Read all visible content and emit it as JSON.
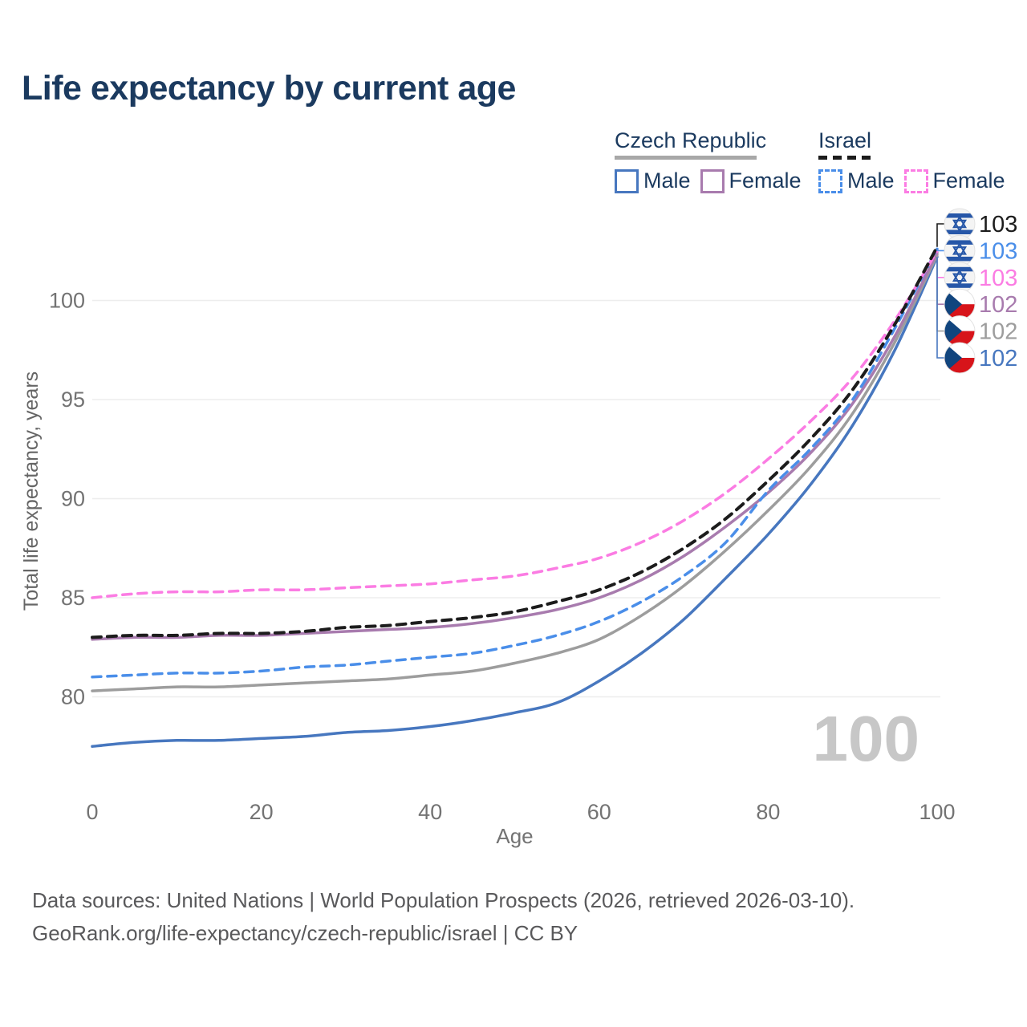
{
  "title": "Life expectancy by current age",
  "legend": {
    "groups": [
      {
        "label": "Czech Republic",
        "line_series_key": "czech_total",
        "items": [
          {
            "label": "Male",
            "series_key": "czech_male"
          },
          {
            "label": "Female",
            "series_key": "czech_female"
          }
        ]
      },
      {
        "label": "Israel",
        "line_series_key": "israel_total",
        "items": [
          {
            "label": "Male",
            "series_key": "israel_male"
          },
          {
            "label": "Female",
            "series_key": "israel_female"
          }
        ]
      }
    ]
  },
  "chart_data": {
    "type": "line",
    "title": "Life expectancy by current age",
    "xlabel": "Age",
    "ylabel": "Total life expectancy, years",
    "xlim": [
      0,
      100
    ],
    "ylim": [
      76,
      104
    ],
    "x_ticks": [
      0,
      20,
      40,
      60,
      80,
      100
    ],
    "y_ticks": [
      80,
      85,
      90,
      95,
      100
    ],
    "grid": "horizontal",
    "legend_position": "top-right",
    "watermark": "100",
    "x": [
      0,
      5,
      10,
      15,
      20,
      25,
      30,
      35,
      40,
      45,
      50,
      55,
      60,
      65,
      70,
      75,
      80,
      85,
      90,
      95,
      100
    ],
    "series": [
      {
        "key": "israel_total",
        "name": "Israel — both sexes",
        "country": "Israel",
        "sex": "both",
        "flag": "israel",
        "color": "#1c1c1c",
        "dashed": true,
        "end_label": "103",
        "values": [
          83.0,
          83.1,
          83.1,
          83.2,
          83.2,
          83.3,
          83.5,
          83.6,
          83.8,
          84.0,
          84.3,
          84.8,
          85.4,
          86.3,
          87.5,
          89.0,
          90.9,
          93.0,
          95.5,
          98.8,
          102.7
        ]
      },
      {
        "key": "israel_male",
        "name": "Israel — male",
        "country": "Israel",
        "sex": "male",
        "flag": "israel",
        "color": "#4a8ee9",
        "dashed": true,
        "end_label": "103",
        "values": [
          81.0,
          81.1,
          81.2,
          81.2,
          81.3,
          81.5,
          81.6,
          81.8,
          82.0,
          82.2,
          82.6,
          83.1,
          83.8,
          84.8,
          86.1,
          87.8,
          90.4,
          92.5,
          95.0,
          98.6,
          102.6
        ]
      },
      {
        "key": "israel_female",
        "name": "Israel — female",
        "country": "Israel",
        "sex": "female",
        "flag": "israel",
        "color": "#fb7ce3",
        "dashed": true,
        "end_label": "103",
        "values": [
          85.0,
          85.2,
          85.3,
          85.3,
          85.4,
          85.4,
          85.5,
          85.6,
          85.7,
          85.9,
          86.1,
          86.5,
          87.0,
          87.8,
          88.9,
          90.3,
          92.0,
          93.9,
          96.1,
          99.0,
          102.5
        ]
      },
      {
        "key": "czech_female",
        "name": "Czech Republic — female",
        "country": "Czech Republic",
        "sex": "female",
        "flag": "czech",
        "color": "#a87bae",
        "dashed": false,
        "end_label": "102",
        "values": [
          82.9,
          83.0,
          83.0,
          83.1,
          83.1,
          83.2,
          83.3,
          83.4,
          83.5,
          83.7,
          84.0,
          84.4,
          85.0,
          85.9,
          87.1,
          88.6,
          90.3,
          92.3,
          94.8,
          98.2,
          102.4
        ]
      },
      {
        "key": "czech_total",
        "name": "Czech Republic — both sexes",
        "country": "Czech Republic",
        "sex": "both",
        "flag": "czech",
        "color": "#9d9d9d",
        "dashed": false,
        "end_label": "102",
        "values": [
          80.3,
          80.4,
          80.5,
          80.5,
          80.6,
          80.7,
          80.8,
          80.9,
          81.1,
          81.3,
          81.7,
          82.2,
          82.9,
          84.1,
          85.6,
          87.4,
          89.4,
          91.6,
          94.3,
          97.9,
          102.3
        ]
      },
      {
        "key": "czech_male",
        "name": "Czech Republic — male",
        "country": "Czech Republic",
        "sex": "male",
        "flag": "czech",
        "color": "#4777bf",
        "dashed": false,
        "end_label": "102",
        "values": [
          77.5,
          77.7,
          77.8,
          77.8,
          77.9,
          78.0,
          78.2,
          78.3,
          78.5,
          78.8,
          79.2,
          79.7,
          80.8,
          82.2,
          83.9,
          86.0,
          88.2,
          90.7,
          93.7,
          97.5,
          102.2
        ]
      }
    ],
    "colors": {
      "axis_text": "#737373",
      "grid": "#ededed",
      "watermark": "#c7c7c7",
      "title": "#1b3a5f",
      "flag_israel_blue": "#2757a8",
      "flag_czech_red": "#d7141a",
      "flag_czech_blue": "#11457e"
    }
  },
  "footer": {
    "line1": "Data sources: United Nations | World Population Prospects (2026, retrieved 2026-03-10).",
    "line2": "GeoRank.org/life-expectancy/czech-republic/israel | CC BY"
  }
}
